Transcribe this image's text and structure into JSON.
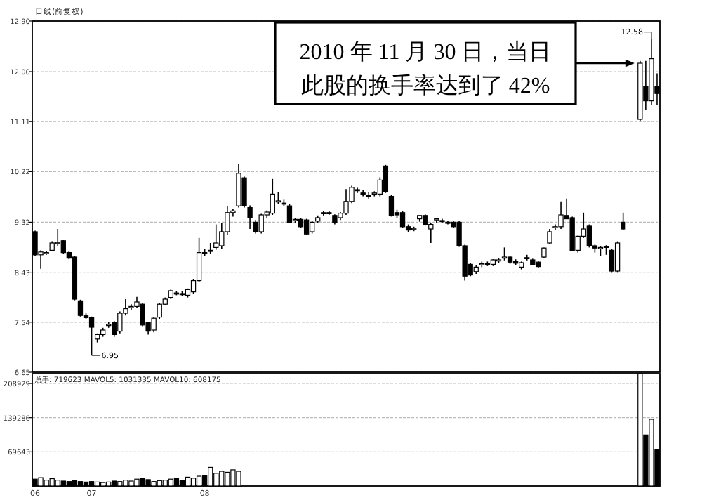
{
  "chart_data": [
    {
      "type": "candlestick",
      "title": "日线(前复权)",
      "tick_labels": "y",
      "grid": "y",
      "ylim": [
        6.65,
        12.9
      ],
      "yticks": [
        {
          "value": 12.9,
          "label": "12.90"
        },
        {
          "value": 12,
          "label": "12.00"
        },
        11.11,
        10.22,
        9.32,
        8.43,
        7.54,
        6.65
      ],
      "categories": [
        "06",
        null,
        null,
        null,
        null,
        null,
        null,
        null,
        null,
        null,
        "07",
        null,
        null,
        null,
        null,
        null,
        null,
        null,
        null,
        null,
        null,
        null,
        null,
        null,
        null,
        null,
        null,
        null,
        null,
        null,
        "08",
        null,
        null,
        null,
        null,
        null,
        null,
        null,
        null,
        null,
        null,
        null,
        null,
        null,
        null,
        null,
        null,
        null,
        null,
        null,
        null,
        null,
        null,
        null,
        null,
        null,
        null,
        null,
        null,
        null,
        null,
        null,
        null,
        null,
        null,
        null,
        null,
        null,
        null,
        null,
        null,
        null,
        null,
        null,
        null,
        null,
        null,
        null,
        null,
        null,
        null,
        null,
        null,
        null,
        null,
        null,
        null,
        null,
        null,
        null,
        null,
        null,
        null,
        null,
        null,
        null,
        null,
        null,
        null,
        null,
        null,
        null,
        null,
        null,
        null,
        null,
        null,
        null,
        null,
        null,
        null
      ],
      "ohlc": [
        [
          9.15,
          9.17,
          8.72,
          8.74
        ],
        [
          8.74,
          8.82,
          8.49,
          8.79
        ],
        [
          8.77,
          8.8,
          8.74,
          8.78
        ],
        [
          8.82,
          8.98,
          8.8,
          8.95
        ],
        [
          8.95,
          9.2,
          8.9,
          8.96
        ],
        [
          8.99,
          9.0,
          8.75,
          8.78
        ],
        [
          8.78,
          8.8,
          8.66,
          8.68
        ],
        [
          8.7,
          8.72,
          7.93,
          7.95
        ],
        [
          7.92,
          7.94,
          7.64,
          7.66
        ],
        [
          7.66,
          7.7,
          7.6,
          7.62
        ],
        [
          7.62,
          7.64,
          6.95,
          7.45
        ],
        [
          7.24,
          7.34,
          7.18,
          7.32
        ],
        [
          7.32,
          7.44,
          7.28,
          7.4
        ],
        [
          7.48,
          7.54,
          7.44,
          7.5
        ],
        [
          7.53,
          7.56,
          7.28,
          7.32
        ],
        [
          7.38,
          7.73,
          7.34,
          7.7
        ],
        [
          7.7,
          7.95,
          7.66,
          7.78
        ],
        [
          7.81,
          7.86,
          7.76,
          7.82
        ],
        [
          7.82,
          7.99,
          7.8,
          7.9
        ],
        [
          7.86,
          7.88,
          7.47,
          7.49
        ],
        [
          7.53,
          7.55,
          7.32,
          7.38
        ],
        [
          7.4,
          7.63,
          7.36,
          7.61
        ],
        [
          7.63,
          7.88,
          7.6,
          7.86
        ],
        [
          7.86,
          7.98,
          7.84,
          7.95
        ],
        [
          7.98,
          8.12,
          7.95,
          8.1
        ],
        [
          8.06,
          8.1,
          8.02,
          8.05
        ],
        [
          8.05,
          8.09,
          8.0,
          8.04
        ],
        [
          8.02,
          8.14,
          7.98,
          8.12
        ],
        [
          8.08,
          8.3,
          8.05,
          8.28
        ],
        [
          8.28,
          9.04,
          8.26,
          8.78
        ],
        [
          8.78,
          8.85,
          8.72,
          8.77
        ],
        [
          8.8,
          8.95,
          8.76,
          8.82
        ],
        [
          8.87,
          9.28,
          8.83,
          8.95
        ],
        [
          8.9,
          9.3,
          8.85,
          9.15
        ],
        [
          9.15,
          9.61,
          9.1,
          9.49
        ],
        [
          9.49,
          9.55,
          9.42,
          9.52
        ],
        [
          9.61,
          10.36,
          9.58,
          10.19
        ],
        [
          10.11,
          10.13,
          9.58,
          9.61
        ],
        [
          9.58,
          9.62,
          9.2,
          9.4
        ],
        [
          9.32,
          9.36,
          9.12,
          9.15
        ],
        [
          9.15,
          9.47,
          9.12,
          9.45
        ],
        [
          9.45,
          9.53,
          9.4,
          9.5
        ],
        [
          9.48,
          10.09,
          9.45,
          9.82
        ],
        [
          9.69,
          9.86,
          9.64,
          9.7
        ],
        [
          9.66,
          9.72,
          9.6,
          9.65
        ],
        [
          9.61,
          9.64,
          9.3,
          9.32
        ],
        [
          9.36,
          9.4,
          9.3,
          9.37
        ],
        [
          9.37,
          9.4,
          9.22,
          9.24
        ],
        [
          9.36,
          9.38,
          9.09,
          9.11
        ],
        [
          9.15,
          9.34,
          9.12,
          9.32
        ],
        [
          9.34,
          9.44,
          9.3,
          9.4
        ],
        [
          9.48,
          9.52,
          9.44,
          9.49
        ],
        [
          9.49,
          9.52,
          9.45,
          9.48
        ],
        [
          9.44,
          9.46,
          9.28,
          9.32
        ],
        [
          9.4,
          9.5,
          9.36,
          9.48
        ],
        [
          9.48,
          9.91,
          9.45,
          9.69
        ],
        [
          9.69,
          9.97,
          9.66,
          9.94
        ],
        [
          9.9,
          9.93,
          9.84,
          9.89
        ],
        [
          9.84,
          9.9,
          9.78,
          9.82
        ],
        [
          9.8,
          9.85,
          9.74,
          9.78
        ],
        [
          9.83,
          9.87,
          9.78,
          9.84
        ],
        [
          9.82,
          10.12,
          9.78,
          10.07
        ],
        [
          10.32,
          10.34,
          9.84,
          9.86
        ],
        [
          9.78,
          9.8,
          9.42,
          9.44
        ],
        [
          9.49,
          9.54,
          9.4,
          9.45
        ],
        [
          9.49,
          9.52,
          9.22,
          9.24
        ],
        [
          9.24,
          9.28,
          9.14,
          9.18
        ],
        [
          9.2,
          9.24,
          9.16,
          9.21
        ],
        [
          9.38,
          9.44,
          9.33,
          9.44
        ],
        [
          9.44,
          9.46,
          9.26,
          9.28
        ],
        [
          9.2,
          9.3,
          8.95,
          9.28
        ],
        [
          9.36,
          9.4,
          9.3,
          9.38
        ],
        [
          9.34,
          9.38,
          9.3,
          9.35
        ],
        [
          9.32,
          9.35,
          9.28,
          9.31
        ],
        [
          9.32,
          9.34,
          9.22,
          9.24
        ],
        [
          9.32,
          9.34,
          8.88,
          8.9
        ],
        [
          8.9,
          8.92,
          8.28,
          8.36
        ],
        [
          8.57,
          8.6,
          8.36,
          8.38
        ],
        [
          8.44,
          8.56,
          8.4,
          8.52
        ],
        [
          8.57,
          8.62,
          8.52,
          8.58
        ],
        [
          8.58,
          8.62,
          8.54,
          8.57
        ],
        [
          8.57,
          8.66,
          8.54,
          8.65
        ],
        [
          8.64,
          8.68,
          8.6,
          8.65
        ],
        [
          8.68,
          8.87,
          8.64,
          8.7
        ],
        [
          8.7,
          8.72,
          8.58,
          8.61
        ],
        [
          8.62,
          8.66,
          8.56,
          8.59
        ],
        [
          8.52,
          8.62,
          8.48,
          8.6
        ],
        [
          8.68,
          8.74,
          8.64,
          8.69
        ],
        [
          8.65,
          8.67,
          8.55,
          8.57
        ],
        [
          8.61,
          8.63,
          8.51,
          8.53
        ],
        [
          8.7,
          8.87,
          8.68,
          8.86
        ],
        [
          8.95,
          9.2,
          8.93,
          9.15
        ],
        [
          9.22,
          9.28,
          9.18,
          9.24
        ],
        [
          9.24,
          9.69,
          9.2,
          9.45
        ],
        [
          9.44,
          9.74,
          9.38,
          9.38
        ],
        [
          9.4,
          9.42,
          8.8,
          8.82
        ],
        [
          8.82,
          9.08,
          8.78,
          9.07
        ],
        [
          9.07,
          9.49,
          9.04,
          9.2
        ],
        [
          9.25,
          9.28,
          8.87,
          8.9
        ],
        [
          8.9,
          8.92,
          8.78,
          8.86
        ],
        [
          8.86,
          8.9,
          8.72,
          8.87
        ],
        [
          8.89,
          8.91,
          8.74,
          8.88
        ],
        [
          8.82,
          8.84,
          8.42,
          8.45
        ],
        [
          8.45,
          8.98,
          8.42,
          8.95
        ],
        [
          9.32,
          9.49,
          9.18,
          9.2
        ],
        null,
        null,
        [
          11.15,
          12.19,
          11.11,
          12.15
        ],
        [
          11.73,
          12.19,
          11.32,
          11.48
        ],
        [
          11.48,
          12.58,
          11.4,
          12.23
        ],
        [
          11.73,
          11.97,
          11.4,
          11.61
        ]
      ],
      "annotations": [
        "2010 年 11 月 30 日，当日此股的换手率达到了 42%",
        "6.95",
        "12.58"
      ]
    },
    {
      "type": "bar",
      "grid": "y",
      "ylim": [
        0,
        229000
      ],
      "yticks": [
        {
          "value": 208929,
          "label": "208929"
        },
        {
          "value": 139286,
          "label": "139286"
        },
        {
          "value": 69643,
          "label": "69643"
        }
      ],
      "categories": [
        "06",
        null,
        null,
        null,
        null,
        null,
        null,
        null,
        null,
        null,
        "07",
        null,
        null,
        null,
        null,
        null,
        null,
        null,
        null,
        null,
        null,
        null,
        null,
        null,
        null,
        null,
        null,
        null,
        null,
        null,
        "08",
        null,
        null,
        null,
        null,
        null,
        null,
        null,
        null,
        null,
        null,
        null,
        null,
        null,
        null,
        null,
        null,
        null,
        null,
        null,
        null,
        null,
        null,
        null,
        null,
        null,
        null,
        null,
        null,
        null,
        null,
        null,
        null,
        null,
        null,
        null,
        null,
        null,
        null,
        null,
        null,
        null,
        null,
        null,
        null,
        null,
        null,
        null,
        null,
        null,
        null,
        null,
        null,
        null,
        null,
        null,
        null,
        null,
        null,
        null,
        null,
        null,
        null,
        null,
        null,
        null,
        null,
        null,
        null,
        null,
        null,
        null,
        null,
        null,
        null,
        null,
        null,
        null,
        null,
        null,
        null
      ],
      "values": [
        14000,
        17000,
        12000,
        15000,
        12000,
        10000,
        9000,
        11000,
        9000,
        8000,
        9000,
        8000,
        7000,
        8000,
        10000,
        9000,
        12000,
        10000,
        14000,
        16000,
        13000,
        9000,
        11000,
        12000,
        14000,
        15000,
        12000,
        18000,
        16000,
        20000,
        22000,
        38000,
        26000,
        30000,
        28000,
        33000,
        30000,
        null,
        null,
        null,
        null,
        null,
        null,
        null,
        null,
        null,
        null,
        null,
        null,
        null,
        null,
        null,
        null,
        null,
        null,
        null,
        null,
        null,
        null,
        null,
        null,
        null,
        null,
        null,
        null,
        null,
        null,
        null,
        null,
        null,
        null,
        null,
        null,
        null,
        null,
        null,
        null,
        null,
        null,
        null,
        null,
        null,
        null,
        null,
        null,
        null,
        null,
        null,
        null,
        null,
        null,
        null,
        null,
        null,
        null,
        null,
        null,
        null,
        null,
        null,
        null,
        null,
        null,
        null,
        null,
        null,
        null,
        229000,
        104000,
        136000,
        75000
      ],
      "colors": [
        "#000000",
        "#ffffff",
        "#ffffff",
        "#ffffff",
        "#ffffff",
        "#000000",
        "#000000",
        "#000000",
        "#000000",
        "#000000",
        "#000000",
        "#ffffff",
        "#ffffff",
        "#ffffff",
        "#000000",
        "#ffffff",
        "#ffffff",
        "#ffffff",
        "#ffffff",
        "#000000",
        "#000000",
        "#ffffff",
        "#ffffff",
        "#ffffff",
        "#ffffff",
        "#000000",
        "#000000",
        "#ffffff",
        "#ffffff",
        "#ffffff",
        "#000000",
        "#ffffff",
        "#ffffff",
        "#ffffff",
        "#ffffff",
        "#ffffff",
        "#ffffff",
        null,
        null,
        null,
        null,
        null,
        null,
        null,
        null,
        null,
        null,
        null,
        null,
        null,
        null,
        null,
        null,
        null,
        null,
        null,
        null,
        null,
        null,
        null,
        null,
        null,
        null,
        null,
        null,
        null,
        null,
        null,
        null,
        null,
        null,
        null,
        null,
        null,
        null,
        null,
        null,
        null,
        null,
        null,
        null,
        null,
        null,
        null,
        null,
        null,
        null,
        null,
        null,
        null,
        null,
        null,
        null,
        null,
        null,
        null,
        null,
        null,
        null,
        null,
        null,
        null,
        null,
        null,
        null,
        null,
        null,
        "#ffffff",
        "#000000",
        "#ffffff",
        "#000000"
      ],
      "annotations": [
        "总手: 719623 MAVOL5: 1031335 MAVOL10: 608175"
      ]
    }
  ]
}
